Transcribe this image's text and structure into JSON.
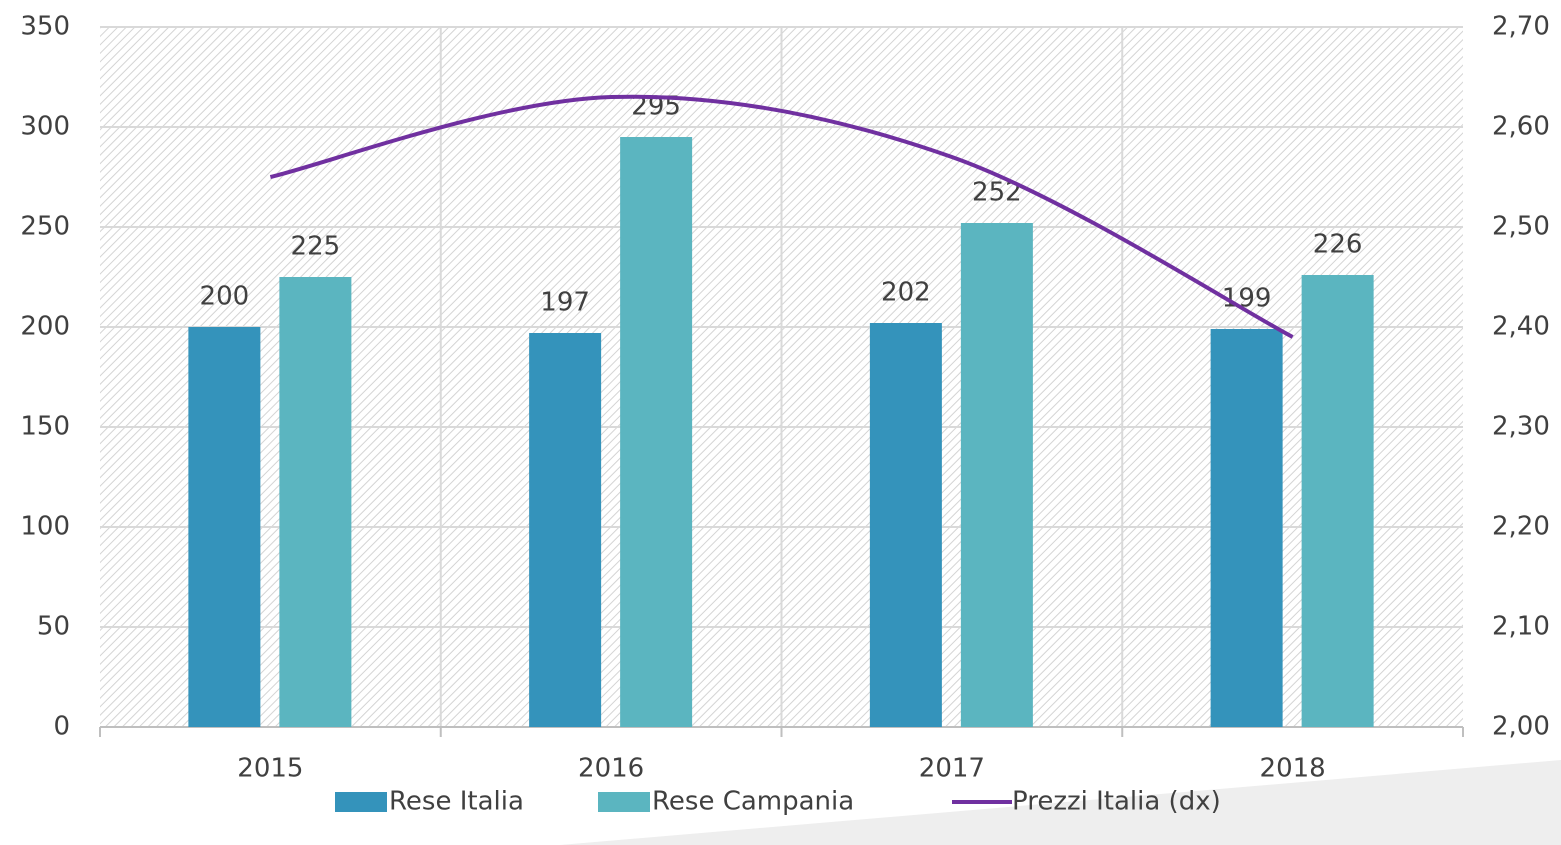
{
  "chart_data": {
    "type": "bar",
    "categories": [
      "2015",
      "2016",
      "2017",
      "2018"
    ],
    "series": [
      {
        "name": "Rese Italia",
        "color": "#3493bb",
        "values": [
          200,
          197,
          202,
          199
        ]
      },
      {
        "name": "Rese Campania",
        "color": "#5bb5c0",
        "values": [
          225,
          295,
          252,
          226
        ]
      },
      {
        "name": "Prezzi Italia (dx)",
        "color": "#7030a0",
        "axis": "y2",
        "type": "line",
        "values": [
          2.55,
          2.63,
          2.57,
          2.39
        ]
      }
    ],
    "ylim": [
      0,
      350
    ],
    "yticks": [
      0,
      50,
      100,
      150,
      200,
      250,
      300,
      350
    ],
    "y2lim": [
      2.0,
      2.7
    ],
    "y2ticks": [
      {
        "value": 2.0,
        "label": "2,00"
      },
      {
        "value": 2.1,
        "label": "2,10"
      },
      {
        "value": 2.2,
        "label": "2,20"
      },
      {
        "value": 2.3,
        "label": "2,30"
      },
      {
        "value": 2.4,
        "label": "2,40"
      },
      {
        "value": 2.5,
        "label": "2,50"
      },
      {
        "value": 2.6,
        "label": "2,60"
      },
      {
        "value": 2.7,
        "label": "2,70"
      }
    ],
    "grid": true,
    "legend": "bottom"
  }
}
